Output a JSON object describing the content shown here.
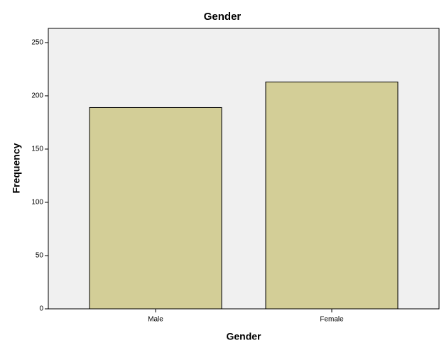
{
  "chart_data": {
    "type": "bar",
    "title": "Gender",
    "x_label": "Gender",
    "y_label": "Frequency",
    "categories": [
      "Male",
      "Female"
    ],
    "values": [
      189,
      213
    ],
    "color": "#d3ce97",
    "ylim": [
      0,
      263.3
    ],
    "yticks": [
      0,
      50,
      100,
      150,
      200,
      250
    ]
  }
}
